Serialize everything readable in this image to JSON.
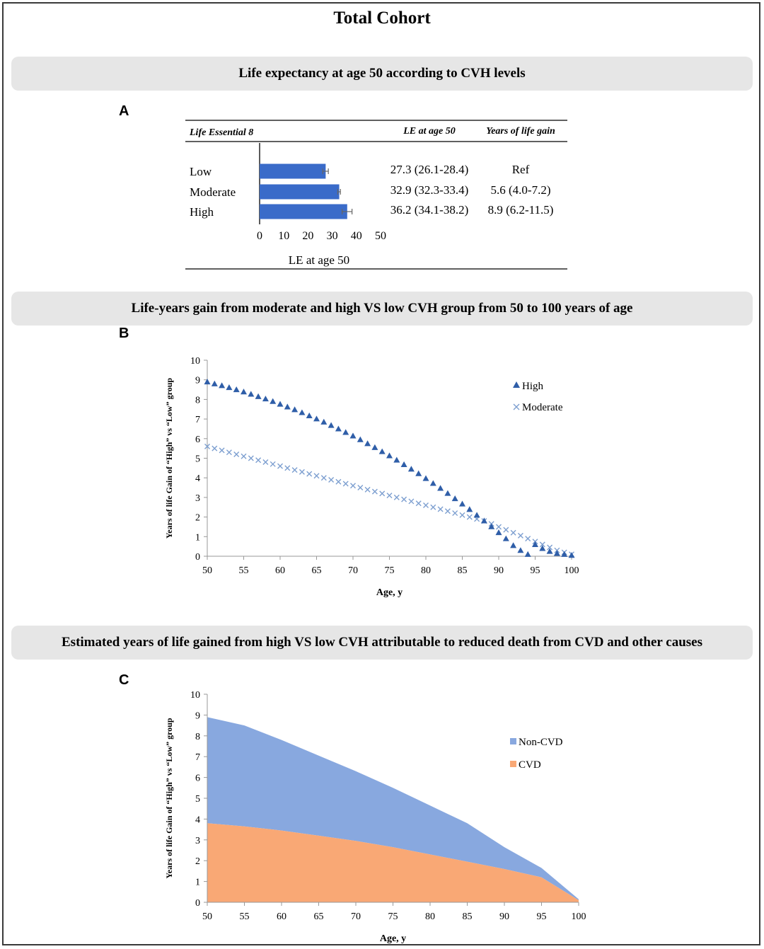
{
  "title": "Total Cohort",
  "panel_a": {
    "letter": "A",
    "band_title": "Life expectancy at age 50 according to CVH levels",
    "header": {
      "group": "Life Essential 8",
      "le": "LE at age 50",
      "gain": "Years of life gain"
    },
    "rows": [
      {
        "label": "Low",
        "le": "27.3 (26.1-28.4)",
        "gain": "Ref"
      },
      {
        "label": "Moderate",
        "le": "32.9 (32.3-33.4)",
        "gain": "5.6 (4.0-7.2)"
      },
      {
        "label": "High",
        "le": "36.2 (34.1-38.2)",
        "gain": "8.9 (6.2-11.5)"
      }
    ],
    "axis_label": "LE at age 50"
  },
  "panel_b": {
    "letter": "B",
    "band_title": "Life-years gain from moderate and high VS low CVH group from 50 to 100 years of age"
  },
  "panel_c": {
    "letter": "C",
    "band_title": "Estimated years of life gained from high VS low CVH attributable to reduced death from CVD and other causes"
  },
  "chart_data": [
    {
      "type": "bar",
      "orientation": "horizontal",
      "categories": [
        "Low",
        "Moderate",
        "High"
      ],
      "values": [
        27.3,
        32.9,
        36.2
      ],
      "ci_low": [
        26.1,
        32.3,
        34.1
      ],
      "ci_high": [
        28.4,
        33.4,
        38.2
      ],
      "xlim": [
        0,
        50
      ],
      "xticks": [
        0,
        10,
        20,
        30,
        40,
        50
      ],
      "xlabel": "LE at age 50",
      "color": "#3a6bc9"
    },
    {
      "type": "scatter",
      "x": [
        50,
        51,
        52,
        53,
        54,
        55,
        56,
        57,
        58,
        59,
        60,
        61,
        62,
        63,
        64,
        65,
        66,
        67,
        68,
        69,
        70,
        71,
        72,
        73,
        74,
        75,
        76,
        77,
        78,
        79,
        80,
        81,
        82,
        83,
        84,
        85,
        86,
        87,
        88,
        89,
        90,
        91,
        92,
        93,
        94,
        95,
        96,
        97,
        98,
        99,
        100
      ],
      "series": [
        {
          "name": "High",
          "marker": "triangle",
          "color": "#2f5ea8",
          "values": [
            8.9,
            8.8,
            8.71,
            8.61,
            8.5,
            8.39,
            8.27,
            8.15,
            8.03,
            7.9,
            7.76,
            7.62,
            7.48,
            7.33,
            7.17,
            7.01,
            6.85,
            6.68,
            6.5,
            6.32,
            6.14,
            5.95,
            5.75,
            5.55,
            5.34,
            5.13,
            4.91,
            4.68,
            4.45,
            4.22,
            3.97,
            3.72,
            3.47,
            3.21,
            2.94,
            2.67,
            2.39,
            2.1,
            1.81,
            1.51,
            1.21,
            0.9,
            0.55,
            0.3,
            0.1,
            0.6,
            0.4,
            0.25,
            0.15,
            0.1,
            0.05
          ]
        },
        {
          "name": "Moderate",
          "marker": "x",
          "color": "#7d9fd0",
          "values": [
            5.6,
            5.5,
            5.4,
            5.3,
            5.2,
            5.1,
            5.0,
            4.9,
            4.8,
            4.7,
            4.6,
            4.5,
            4.4,
            4.3,
            4.2,
            4.1,
            4.0,
            3.9,
            3.8,
            3.7,
            3.6,
            3.5,
            3.4,
            3.3,
            3.2,
            3.1,
            3.0,
            2.9,
            2.8,
            2.7,
            2.6,
            2.5,
            2.4,
            2.3,
            2.2,
            2.1,
            2.0,
            1.9,
            1.8,
            1.65,
            1.5,
            1.35,
            1.2,
            1.05,
            0.9,
            0.75,
            0.6,
            0.45,
            0.3,
            0.2,
            0.1
          ]
        }
      ],
      "xlim": [
        50,
        100
      ],
      "ylim": [
        0,
        10
      ],
      "xticks": [
        50,
        55,
        60,
        65,
        70,
        75,
        80,
        85,
        90,
        95,
        100
      ],
      "yticks": [
        0,
        1,
        2,
        3,
        4,
        5,
        6,
        7,
        8,
        9,
        10
      ],
      "xlabel": "Age, y",
      "ylabel": "Years of life Gain of “High” vs “Low” group"
    },
    {
      "type": "area",
      "stacked": true,
      "x": [
        50,
        55,
        60,
        65,
        70,
        75,
        80,
        85,
        90,
        95,
        100
      ],
      "series": [
        {
          "name": "CVD",
          "color": "#f9a875",
          "values": [
            3.8,
            3.65,
            3.45,
            3.2,
            2.95,
            2.65,
            2.3,
            1.95,
            1.6,
            1.2,
            0.1
          ]
        },
        {
          "name": "Non-CVD",
          "color": "#88a8df",
          "values": [
            5.1,
            4.85,
            4.35,
            3.85,
            3.35,
            2.85,
            2.35,
            1.85,
            1.05,
            0.45,
            0.05
          ]
        }
      ],
      "xlim": [
        50,
        100
      ],
      "ylim": [
        0,
        10
      ],
      "xticks": [
        50,
        55,
        60,
        65,
        70,
        75,
        80,
        85,
        90,
        95,
        100
      ],
      "yticks": [
        0,
        1,
        2,
        3,
        4,
        5,
        6,
        7,
        8,
        9,
        10
      ],
      "xlabel": "Age, y",
      "ylabel": "Years of life Gain of “High” vs “Low” group",
      "legend": [
        "Non-CVD",
        "CVD"
      ]
    }
  ]
}
